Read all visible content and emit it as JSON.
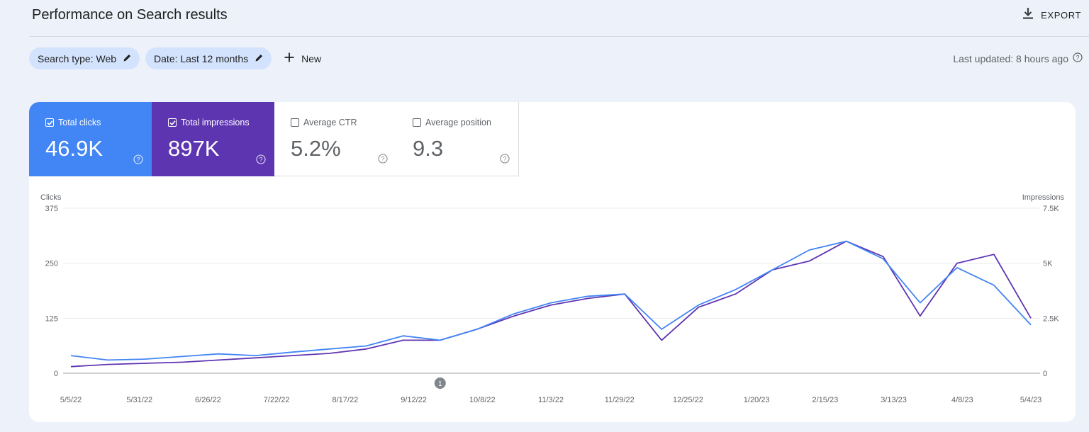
{
  "header": {
    "title": "Performance on Search results",
    "export_label": "EXPORT"
  },
  "filters": {
    "search_type": "Search type: Web",
    "date": "Date: Last 12 months",
    "new_label": "New"
  },
  "last_updated": "Last updated: 8 hours ago",
  "metrics": {
    "clicks": {
      "label": "Total clicks",
      "value": "46.9K",
      "checked": true,
      "color": "#4285f4"
    },
    "impressions": {
      "label": "Total impressions",
      "value": "897K",
      "checked": true,
      "color": "#5e35b1"
    },
    "ctr": {
      "label": "Average CTR",
      "value": "5.2%",
      "checked": false
    },
    "position": {
      "label": "Average position",
      "value": "9.3",
      "checked": false
    }
  },
  "chart_data": {
    "type": "line",
    "ylabel_left": "Clicks",
    "ylabel_right": "Impressions",
    "ylim_left": [
      0,
      375
    ],
    "ylim_right": [
      0,
      7500
    ],
    "yticks_left": [
      "0",
      "125",
      "250",
      "375"
    ],
    "yticks_right": [
      "0",
      "2.5K",
      "5K",
      "7.5K"
    ],
    "xticks": [
      "5/5/22",
      "5/31/22",
      "6/26/22",
      "7/22/22",
      "8/17/22",
      "9/12/22",
      "10/8/22",
      "11/3/22",
      "11/29/22",
      "12/25/22",
      "1/20/23",
      "2/15/23",
      "3/13/23",
      "4/8/23",
      "5/4/23"
    ],
    "grid": true,
    "annotation": {
      "label": "1",
      "date": "9/22/22"
    },
    "x": [
      "5/5/22",
      "5/19/22",
      "6/2/22",
      "6/16/22",
      "6/30/22",
      "7/14/22",
      "7/28/22",
      "8/11/22",
      "8/25/22",
      "9/8/22",
      "9/22/22",
      "10/6/22",
      "10/20/22",
      "11/3/22",
      "11/17/22",
      "12/1/22",
      "12/15/22",
      "12/29/22",
      "1/12/23",
      "1/26/23",
      "2/9/23",
      "2/23/23",
      "3/9/23",
      "3/23/23",
      "4/6/23",
      "4/20/23",
      "5/4/23"
    ],
    "series": [
      {
        "name": "Total clicks",
        "axis": "left",
        "color": "#4285f4",
        "values": [
          40,
          30,
          32,
          38,
          44,
          40,
          48,
          55,
          62,
          85,
          75,
          100,
          135,
          160,
          175,
          180,
          100,
          155,
          190,
          235,
          280,
          300,
          260,
          160,
          240,
          200,
          110
        ]
      },
      {
        "name": "Total impressions",
        "axis": "right",
        "color": "#5e35b1",
        "values": [
          300,
          400,
          450,
          500,
          600,
          700,
          800,
          900,
          1100,
          1500,
          1500,
          2000,
          2600,
          3100,
          3400,
          3600,
          1500,
          3000,
          3600,
          4700,
          5100,
          6000,
          5300,
          2600,
          5000,
          5400,
          2500
        ]
      }
    ]
  }
}
